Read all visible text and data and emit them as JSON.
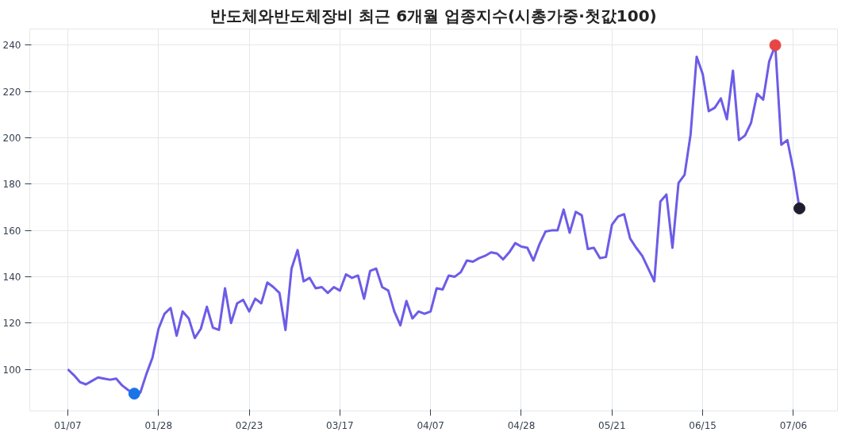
{
  "chart_data": {
    "type": "line",
    "title": "반도체와반도체장비 최근 6개월 업종지수(시총가중·첫값100)",
    "categories": [
      "01/07",
      null,
      null,
      null,
      null,
      null,
      null,
      null,
      null,
      null,
      null,
      null,
      null,
      null,
      null,
      "01/28",
      null,
      null,
      null,
      null,
      null,
      null,
      null,
      null,
      null,
      null,
      null,
      null,
      null,
      null,
      "02/23",
      null,
      null,
      null,
      null,
      null,
      null,
      null,
      null,
      null,
      null,
      null,
      null,
      null,
      null,
      "03/17",
      null,
      null,
      null,
      null,
      null,
      null,
      null,
      null,
      null,
      null,
      null,
      null,
      null,
      null,
      "04/07",
      null,
      null,
      null,
      null,
      null,
      null,
      null,
      null,
      null,
      null,
      null,
      null,
      null,
      null,
      "04/28",
      null,
      null,
      null,
      null,
      null,
      null,
      null,
      null,
      null,
      null,
      null,
      null,
      null,
      null,
      "05/21",
      null,
      null,
      null,
      null,
      null,
      null,
      null,
      null,
      null,
      null,
      null,
      null,
      null,
      null,
      "06/15",
      null,
      null,
      null,
      null,
      null,
      null,
      null,
      null,
      null,
      null,
      null,
      null,
      null,
      null,
      "07/06",
      null
    ],
    "series": [
      {
        "color": "#6c5ce7",
        "values": [
          100,
          97.5,
          94.5,
          93.5,
          95,
          96.5,
          96,
          95.5,
          96,
          93,
          91,
          89.5,
          90,
          98,
          105,
          117.5,
          124,
          126.5,
          114.5,
          125,
          122,
          113.5,
          117.5,
          127,
          118,
          117,
          135,
          120,
          128.5,
          130,
          125,
          130.5,
          128.5,
          137.5,
          135.5,
          133,
          117,
          143.5,
          151.5,
          138,
          139.5,
          135,
          135.5,
          133,
          135.5,
          134,
          141,
          139.5,
          140.5,
          130.5,
          142.5,
          143.5,
          135.5,
          134,
          125,
          119,
          129.5,
          122,
          125,
          124,
          125,
          135,
          134.5,
          140.5,
          140,
          142,
          147,
          146.5,
          148,
          149,
          150.5,
          150,
          147.5,
          150.5,
          154.5,
          153,
          152.5,
          147,
          154,
          159.5,
          160,
          160,
          169,
          159,
          168,
          166.5,
          152,
          152.5,
          148,
          148.5,
          162.5,
          166,
          167,
          156.5,
          152.5,
          149,
          143.5,
          138,
          172.5,
          175.5,
          152.5,
          180.5,
          184,
          201.5,
          235,
          227.5,
          211.5,
          213,
          217,
          208,
          229,
          199,
          201,
          206.5,
          219,
          216.5,
          233,
          240,
          197,
          199,
          186,
          169.5
        ]
      },
      {
        "type": "scatter",
        "marker": "circle",
        "color": "#1a73e8",
        "values": [
          null,
          null,
          null,
          null,
          null,
          null,
          null,
          null,
          null,
          null,
          null,
          89.5,
          null,
          null,
          null,
          null,
          null,
          null,
          null,
          null,
          null,
          null,
          null,
          null,
          null,
          null,
          null,
          null,
          null,
          null,
          null,
          null,
          null,
          null,
          null,
          null,
          null,
          null,
          null,
          null,
          null,
          null,
          null,
          null,
          null,
          null,
          null,
          null,
          null,
          null,
          null,
          null,
          null,
          null,
          null,
          null,
          null,
          null,
          null,
          null,
          null,
          null,
          null,
          null,
          null,
          null,
          null,
          null,
          null,
          null,
          null,
          null,
          null,
          null,
          null,
          null,
          null,
          null,
          null,
          null,
          null,
          null,
          null,
          null,
          null,
          null,
          null,
          null,
          null,
          null,
          null,
          null,
          null,
          null,
          null,
          null,
          null,
          null,
          null,
          null,
          null,
          null,
          null,
          null,
          null,
          null,
          null,
          null,
          null,
          null,
          null,
          null,
          null,
          null,
          null,
          null,
          null,
          null,
          null,
          null,
          null,
          null
        ]
      },
      {
        "type": "scatter",
        "marker": "circle",
        "color": "#e84545",
        "values": [
          null,
          null,
          null,
          null,
          null,
          null,
          null,
          null,
          null,
          null,
          null,
          null,
          null,
          null,
          null,
          null,
          null,
          null,
          null,
          null,
          null,
          null,
          null,
          null,
          null,
          null,
          null,
          null,
          null,
          null,
          null,
          null,
          null,
          null,
          null,
          null,
          null,
          null,
          null,
          null,
          null,
          null,
          null,
          null,
          null,
          null,
          null,
          null,
          null,
          null,
          null,
          null,
          null,
          null,
          null,
          null,
          null,
          null,
          null,
          null,
          null,
          null,
          null,
          null,
          null,
          null,
          null,
          null,
          null,
          null,
          null,
          null,
          null,
          null,
          null,
          null,
          null,
          null,
          null,
          null,
          null,
          null,
          null,
          null,
          null,
          null,
          null,
          null,
          null,
          null,
          null,
          null,
          null,
          null,
          null,
          null,
          null,
          null,
          null,
          null,
          null,
          null,
          null,
          null,
          null,
          null,
          null,
          null,
          null,
          null,
          null,
          null,
          null,
          null,
          null,
          null,
          null,
          240,
          null,
          null,
          null,
          null
        ]
      },
      {
        "type": "scatter",
        "marker": "circle",
        "color": "#1e1e2e",
        "values": [
          null,
          null,
          null,
          null,
          null,
          null,
          null,
          null,
          null,
          null,
          null,
          null,
          null,
          null,
          null,
          null,
          null,
          null,
          null,
          null,
          null,
          null,
          null,
          null,
          null,
          null,
          null,
          null,
          null,
          null,
          null,
          null,
          null,
          null,
          null,
          null,
          null,
          null,
          null,
          null,
          null,
          null,
          null,
          null,
          null,
          null,
          null,
          null,
          null,
          null,
          null,
          null,
          null,
          null,
          null,
          null,
          null,
          null,
          null,
          null,
          null,
          null,
          null,
          null,
          null,
          null,
          null,
          null,
          null,
          null,
          null,
          null,
          null,
          null,
          null,
          null,
          null,
          null,
          null,
          null,
          null,
          null,
          null,
          null,
          null,
          null,
          null,
          null,
          null,
          null,
          null,
          null,
          null,
          null,
          null,
          null,
          null,
          null,
          null,
          null,
          null,
          null,
          null,
          null,
          null,
          null,
          null,
          null,
          null,
          null,
          null,
          null,
          null,
          null,
          null,
          null,
          null,
          null,
          null,
          null,
          null,
          169.5
        ]
      }
    ],
    "ylim": [
      82,
      247
    ],
    "yticks": [
      100,
      120,
      140,
      160,
      180,
      200,
      220,
      240
    ],
    "grid": true,
    "line_style": "solid"
  }
}
